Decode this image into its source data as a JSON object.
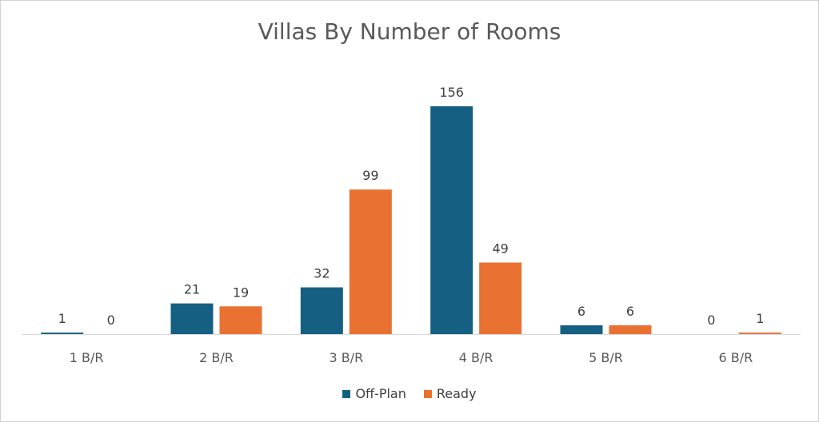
{
  "chart_data": {
    "type": "bar",
    "title": "Villas By Number of Rooms",
    "categories": [
      "1 B/R",
      "2 B/R",
      "3 B/R",
      "4 B/R",
      "5 B/R",
      "6 B/R"
    ],
    "series": [
      {
        "name": "Off-Plan",
        "color": "#156082",
        "values": [
          1,
          21,
          32,
          156,
          6,
          0
        ]
      },
      {
        "name": "Ready",
        "color": "#E97132",
        "values": [
          0,
          19,
          99,
          49,
          6,
          1
        ]
      }
    ],
    "ylim": [
      0,
      180
    ],
    "grid": false,
    "legend_position": "bottom"
  }
}
